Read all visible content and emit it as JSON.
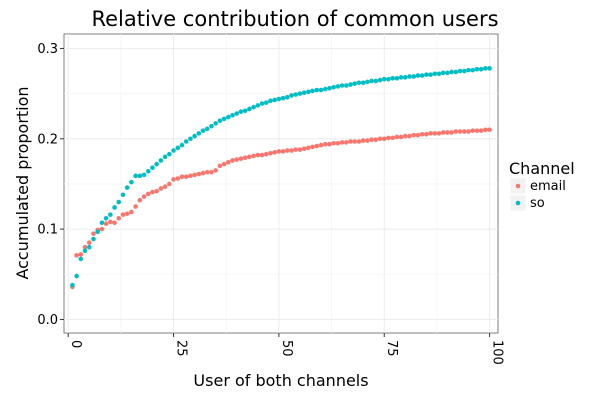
{
  "chart_data": {
    "type": "scatter",
    "title": "Relative contribution of common users",
    "xlabel": "User of both channels",
    "ylabel": "Accumulated proportion",
    "xlim": [
      -1,
      102
    ],
    "ylim": [
      -0.015,
      0.316
    ],
    "x_ticks": [
      0,
      25,
      50,
      75,
      100
    ],
    "x_tick_labels": [
      "0",
      "25",
      "50",
      "75",
      "100"
    ],
    "y_ticks": [
      0.0,
      0.1,
      0.2,
      0.3
    ],
    "y_tick_labels": [
      "0.0",
      "0.1",
      "0.2",
      "0.3"
    ],
    "x_minor_ticks": [
      12.5,
      37.5,
      62.5,
      87.5
    ],
    "y_minor_ticks": [
      0.05,
      0.15,
      0.25
    ],
    "grid": true,
    "legend": {
      "title": "Channel",
      "position": "right"
    },
    "colors": {
      "email": "#F8766D",
      "so": "#00BFC4"
    },
    "series": [
      {
        "name": "email",
        "x": [
          1,
          2,
          3,
          4,
          5,
          6,
          7,
          8,
          9,
          10,
          11,
          12,
          13,
          14,
          15,
          16,
          17,
          18,
          19,
          20,
          21,
          22,
          23,
          24,
          25,
          26,
          27,
          28,
          29,
          30,
          31,
          32,
          33,
          34,
          35,
          36,
          37,
          38,
          39,
          40,
          41,
          42,
          43,
          44,
          45,
          46,
          47,
          48,
          49,
          50,
          51,
          52,
          53,
          54,
          55,
          56,
          57,
          58,
          59,
          60,
          61,
          62,
          63,
          64,
          65,
          66,
          67,
          68,
          69,
          70,
          71,
          72,
          73,
          74,
          75,
          76,
          77,
          78,
          79,
          80,
          81,
          82,
          83,
          84,
          85,
          86,
          87,
          88,
          89,
          90,
          91,
          92,
          93,
          94,
          95,
          96,
          97,
          98,
          99,
          100
        ],
        "y": [
          0.036,
          0.071,
          0.072,
          0.08,
          0.085,
          0.095,
          0.099,
          0.1,
          0.106,
          0.108,
          0.107,
          0.112,
          0.116,
          0.117,
          0.119,
          0.125,
          0.132,
          0.136,
          0.139,
          0.141,
          0.142,
          0.145,
          0.147,
          0.15,
          0.155,
          0.156,
          0.158,
          0.158,
          0.159,
          0.16,
          0.161,
          0.162,
          0.163,
          0.163,
          0.165,
          0.17,
          0.172,
          0.174,
          0.176,
          0.177,
          0.178,
          0.179,
          0.18,
          0.181,
          0.182,
          0.182,
          0.183,
          0.184,
          0.185,
          0.186,
          0.186,
          0.187,
          0.187,
          0.188,
          0.188,
          0.189,
          0.19,
          0.191,
          0.192,
          0.193,
          0.194,
          0.194,
          0.195,
          0.195,
          0.196,
          0.196,
          0.197,
          0.197,
          0.197,
          0.198,
          0.198,
          0.199,
          0.199,
          0.2,
          0.2,
          0.201,
          0.201,
          0.202,
          0.202,
          0.203,
          0.203,
          0.204,
          0.204,
          0.205,
          0.205,
          0.206,
          0.206,
          0.206,
          0.207,
          0.207,
          0.207,
          0.208,
          0.208,
          0.208,
          0.208,
          0.209,
          0.209,
          0.209,
          0.21,
          0.21
        ]
      },
      {
        "name": "so",
        "x": [
          1,
          2,
          3,
          4,
          5,
          6,
          7,
          8,
          9,
          10,
          11,
          12,
          13,
          14,
          15,
          16,
          17,
          18,
          19,
          20,
          21,
          22,
          23,
          24,
          25,
          26,
          27,
          28,
          29,
          30,
          31,
          32,
          33,
          34,
          35,
          36,
          37,
          38,
          39,
          40,
          41,
          42,
          43,
          44,
          45,
          46,
          47,
          48,
          49,
          50,
          51,
          52,
          53,
          54,
          55,
          56,
          57,
          58,
          59,
          60,
          61,
          62,
          63,
          64,
          65,
          66,
          67,
          68,
          69,
          70,
          71,
          72,
          73,
          74,
          75,
          76,
          77,
          78,
          79,
          80,
          81,
          82,
          83,
          84,
          85,
          86,
          87,
          88,
          89,
          90,
          91,
          92,
          93,
          94,
          95,
          96,
          97,
          98,
          99,
          100
        ],
        "y": [
          0.038,
          0.048,
          0.067,
          0.076,
          0.08,
          0.089,
          0.097,
          0.107,
          0.112,
          0.116,
          0.124,
          0.13,
          0.138,
          0.146,
          0.152,
          0.159,
          0.159,
          0.16,
          0.164,
          0.168,
          0.172,
          0.176,
          0.18,
          0.183,
          0.187,
          0.19,
          0.193,
          0.197,
          0.2,
          0.203,
          0.206,
          0.209,
          0.211,
          0.214,
          0.217,
          0.22,
          0.222,
          0.224,
          0.226,
          0.228,
          0.23,
          0.231,
          0.233,
          0.235,
          0.237,
          0.239,
          0.24,
          0.242,
          0.243,
          0.244,
          0.245,
          0.246,
          0.248,
          0.249,
          0.25,
          0.251,
          0.252,
          0.253,
          0.254,
          0.254,
          0.255,
          0.256,
          0.257,
          0.258,
          0.259,
          0.259,
          0.26,
          0.261,
          0.262,
          0.262,
          0.263,
          0.264,
          0.264,
          0.265,
          0.266,
          0.266,
          0.267,
          0.267,
          0.268,
          0.268,
          0.269,
          0.269,
          0.27,
          0.27,
          0.271,
          0.271,
          0.272,
          0.272,
          0.273,
          0.273,
          0.274,
          0.274,
          0.275,
          0.275,
          0.276,
          0.276,
          0.277,
          0.277,
          0.278,
          0.278
        ]
      }
    ]
  }
}
